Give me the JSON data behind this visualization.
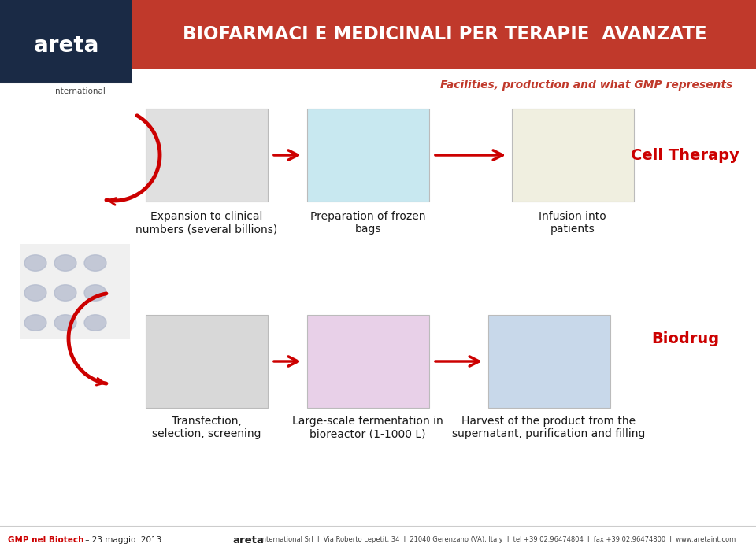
{
  "title": "BIOFARMACI E MEDICINALI PER TERAPIE  AVANZATE",
  "subtitle": "Facilities, production and what GMP represents",
  "title_bg": "#c0392b",
  "title_color": "#ffffff",
  "subtitle_color": "#c0392b",
  "bg_color": "#ffffff",
  "logo_bg": "#1a2a45",
  "logo_text": "areta",
  "logo_sub": "international",
  "arrow_color": "#cc0000",
  "cell_therapy_label": "Cell Therapy",
  "biodrug_label": "Biodrug",
  "label_color": "#cc0000",
  "row1_labels": [
    "Expansion to clinical\nnumbers (several billions)",
    "Preparation of frozen\nbags",
    "Infusion into\npatients"
  ],
  "row2_labels": [
    "Transfection,\nselection, screening",
    "Large-scale fermentation in\nbioreactor (1-1000 L)",
    "Harvest of the product from the\nsupernatant, purification and filling"
  ],
  "footer_left_bold": "GMP nel Biotech",
  "footer_left_dash": " – ",
  "footer_left_rest": "23 maggio  2013",
  "footer_right_brand": "areta",
  "footer_right_rest": "  international Srl  I  Via Roberto Lepetit, 34  I  21040 Gerenzano (VA), Italy  I  tel +39 02.96474804  I  fax +39 02.96474800  I  www.aretaint.com",
  "footer_line_color": "#cccccc",
  "label_fontsize": 10,
  "footer_fontsize": 7.5,
  "img_placeholder_colors": [
    "#e0e0e0",
    "#c8e8f0",
    "#f0efe0",
    "#d8d8d8",
    "#e8d0e8",
    "#c8d8ea"
  ]
}
